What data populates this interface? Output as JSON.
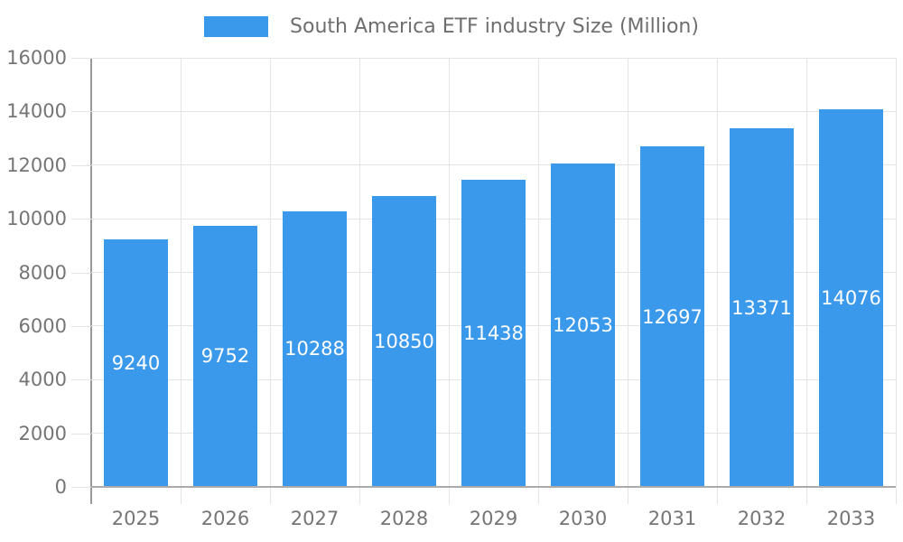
{
  "chart_data": {
    "type": "bar",
    "title": "",
    "legend_position": "top",
    "categories": [
      "2025",
      "2026",
      "2027",
      "2028",
      "2029",
      "2030",
      "2031",
      "2032",
      "2033"
    ],
    "series": [
      {
        "name": "South America ETF industry Size (Million)",
        "values": [
          9240,
          9752,
          10288,
          10850,
          11438,
          12053,
          12697,
          13371,
          14076
        ]
      }
    ],
    "xlabel": "",
    "ylabel": "",
    "ylim": [
      0,
      16000
    ],
    "yticks": [
      0,
      2000,
      4000,
      6000,
      8000,
      10000,
      12000,
      14000,
      16000
    ],
    "grid": true,
    "value_label_position": "inside-center",
    "colors": {
      "bar": "#3b99ec",
      "axis_text": "#757575",
      "legend_text": "#6e6e6e",
      "value_text": "#ffffff",
      "grid": "#e4e4e4",
      "x_axis_line": "#ababab",
      "y_axis_line": "#999999"
    }
  }
}
